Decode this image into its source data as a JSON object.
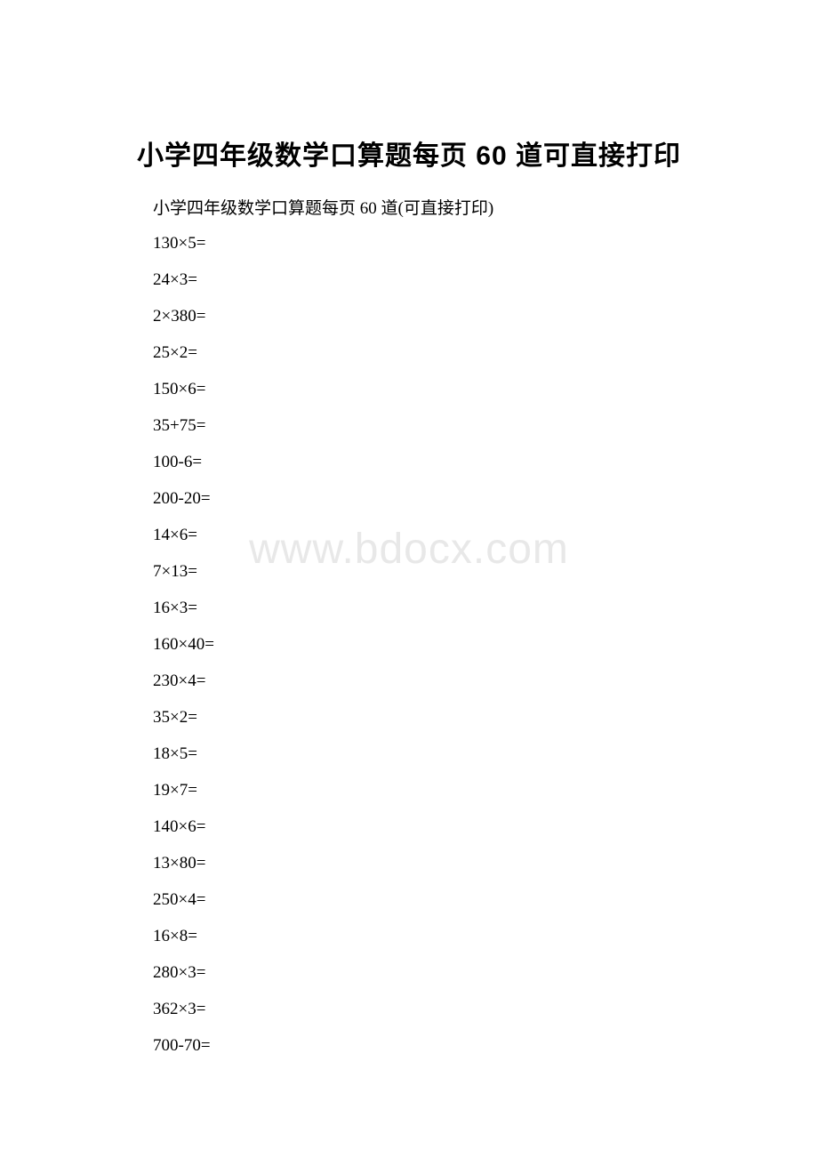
{
  "document": {
    "title": "小学四年级数学口算题每页 60 道可直接打印",
    "subtitle": "小学四年级数学口算题每页 60 道(可直接打印)",
    "watermark": "www.bdocx.com",
    "title_fontsize": 30,
    "subtitle_fontsize": 19,
    "problem_fontsize": 19,
    "watermark_fontsize": 48,
    "background_color": "#ffffff",
    "text_color": "#000000",
    "watermark_color": "#e8e8e8",
    "problems": [
      "130×5=",
      "24×3=",
      "2×380=",
      "25×2=",
      "150×6=",
      "35+75=",
      "100-6=",
      "200-20=",
      "14×6=",
      "7×13=",
      "16×3=",
      "160×40=",
      "230×4=",
      "35×2=",
      "18×5=",
      "19×7=",
      "140×6=",
      "13×80=",
      "250×4=",
      "16×8=",
      "280×3=",
      "362×3=",
      " 700-70="
    ]
  }
}
